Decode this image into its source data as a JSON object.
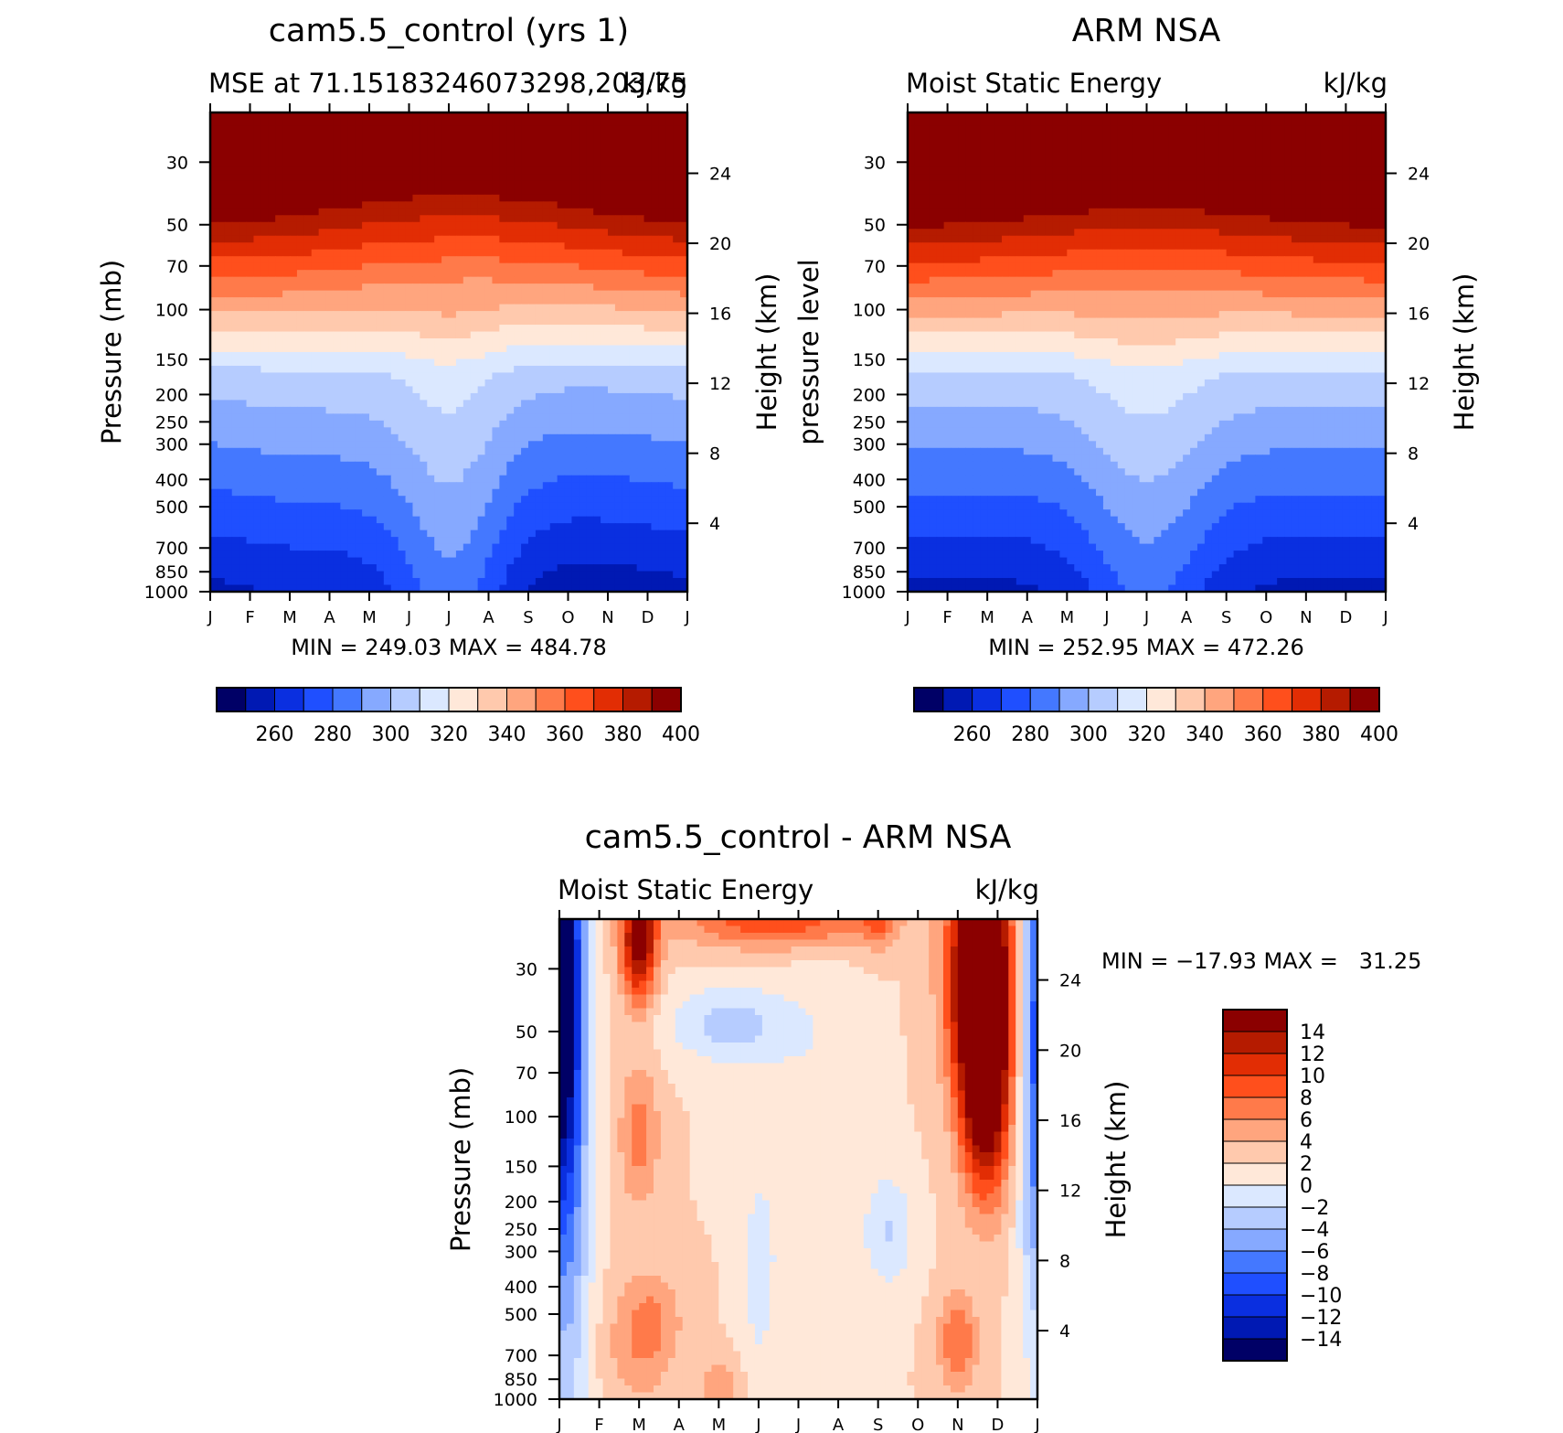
{
  "colors": {
    "mse_palette": [
      "#000066",
      "#0019b3",
      "#0a2fe0",
      "#1f4fff",
      "#4478ff",
      "#86a9ff",
      "#b6ccff",
      "#dbe8ff",
      "#ffe8d9",
      "#ffc9ad",
      "#ffa57e",
      "#ff7a4a",
      "#ff4f1c",
      "#e22d04",
      "#b51b00",
      "#8b0000"
    ],
    "diff_palette": [
      "#000066",
      "#0019b3",
      "#0a2fe0",
      "#1f4fff",
      "#4478ff",
      "#86a9ff",
      "#b6ccff",
      "#dbe8ff",
      "#ffe8d9",
      "#ffc9ad",
      "#ffa57e",
      "#ff7a4a",
      "#ff4f1c",
      "#e22d04",
      "#b51b00",
      "#8b0000"
    ]
  },
  "chart_data": [
    {
      "type": "heatmap",
      "title": "cam5.5_control (yrs 1)",
      "subtitle_left": "MSE at 71.15183246073298,203.75",
      "subtitle_right": "kJ/kg",
      "ylabel": "Pressure (mb)",
      "y2label": "Height (km)",
      "xticks": [
        "J",
        "F",
        "M",
        "A",
        "M",
        "J",
        "J",
        "A",
        "S",
        "O",
        "N",
        "D",
        "J"
      ],
      "yticks": [
        "30",
        "50",
        "70",
        "100",
        "150",
        "200",
        "250",
        "300",
        "400",
        "500",
        "700",
        "850",
        "1000"
      ],
      "y2ticks": [
        "24",
        "20",
        "16",
        "12",
        "8",
        "4"
      ],
      "stats": "MIN = 249.03 MAX = 484.78",
      "colorbar_labels": [
        "260",
        "280",
        "300",
        "320",
        "340",
        "360",
        "380",
        "400"
      ],
      "levels": [
        250,
        260,
        270,
        280,
        290,
        300,
        310,
        320,
        330,
        340,
        350,
        360,
        370,
        380,
        390,
        400
      ]
    },
    {
      "type": "heatmap",
      "title": "ARM NSA",
      "subtitle_left": "Moist Static Energy",
      "subtitle_right": "kJ/kg",
      "ylabel": "pressure level",
      "y2label": "Height (km)",
      "xticks": [
        "J",
        "F",
        "M",
        "A",
        "M",
        "J",
        "J",
        "A",
        "S",
        "O",
        "N",
        "D",
        "J"
      ],
      "yticks": [
        "30",
        "50",
        "70",
        "100",
        "150",
        "200",
        "250",
        "300",
        "400",
        "500",
        "700",
        "850",
        "1000"
      ],
      "y2ticks": [
        "24",
        "20",
        "16",
        "12",
        "8",
        "4"
      ],
      "stats": "MIN = 252.95 MAX = 472.26",
      "colorbar_labels": [
        "260",
        "280",
        "300",
        "320",
        "340",
        "360",
        "380",
        "400"
      ],
      "levels": [
        250,
        260,
        270,
        280,
        290,
        300,
        310,
        320,
        330,
        340,
        350,
        360,
        370,
        380,
        390,
        400
      ]
    },
    {
      "type": "heatmap",
      "title": "cam5.5_control - ARM NSA",
      "subtitle_left": "Moist Static Energy",
      "subtitle_right": "kJ/kg",
      "ylabel": "Pressure (mb)",
      "y2label": "Height (km)",
      "xticks": [
        "J",
        "F",
        "M",
        "A",
        "M",
        "J",
        "J",
        "A",
        "S",
        "O",
        "N",
        "D",
        "J"
      ],
      "yticks": [
        "30",
        "50",
        "70",
        "100",
        "150",
        "200",
        "250",
        "300",
        "400",
        "500",
        "700",
        "850",
        "1000"
      ],
      "y2ticks": [
        "24",
        "20",
        "16",
        "12",
        "8",
        "4"
      ],
      "stats": "MIN = −17.93 MAX =   31.25",
      "colorbar_labels": [
        "14",
        "12",
        "10",
        "8",
        "6",
        "4",
        "2",
        "0",
        "−2",
        "−4",
        "−6",
        "−8",
        "−10",
        "−12",
        "−14"
      ],
      "levels": [
        -16,
        -14,
        -12,
        -10,
        -8,
        -6,
        -4,
        -2,
        0,
        2,
        4,
        6,
        8,
        10,
        12,
        14
      ]
    }
  ]
}
